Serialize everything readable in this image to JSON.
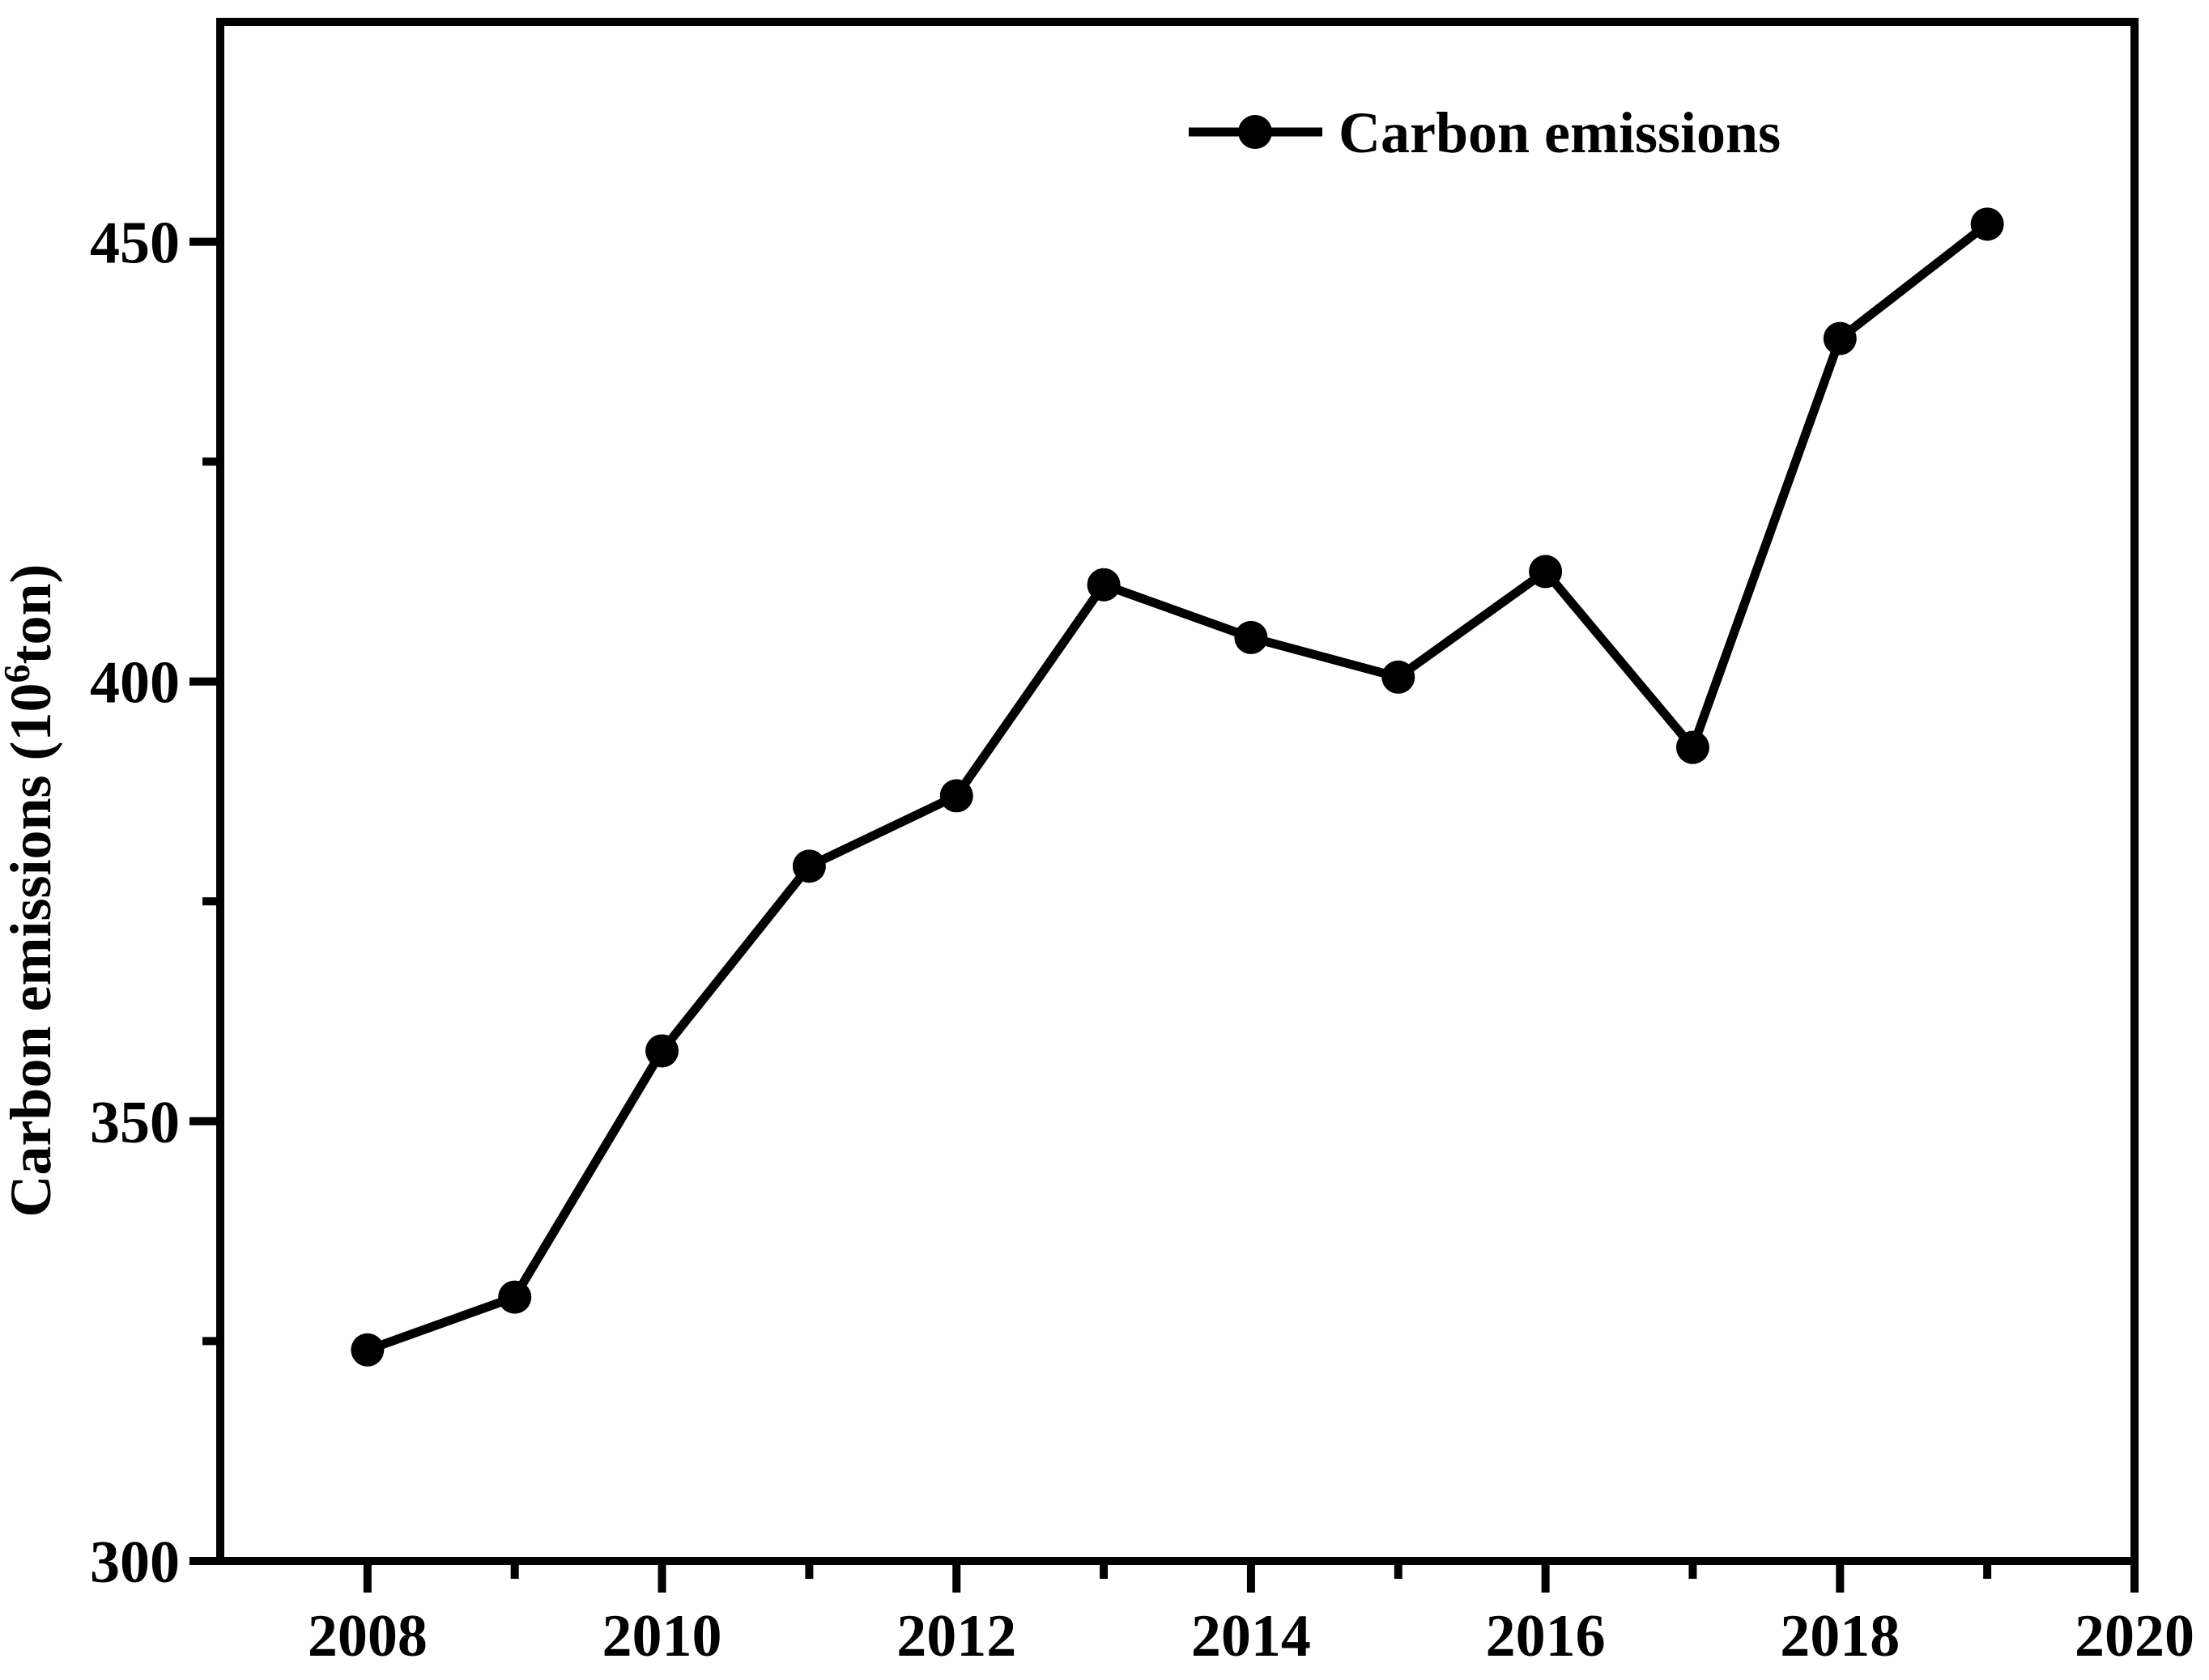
{
  "figure": {
    "background_color": "#ffffff",
    "ink_color": "#000000"
  },
  "legend": {
    "label": "Carbon emissions",
    "swatch": "line-with-circle-marker"
  },
  "y_axis": {
    "label_display": "Carbon emissions (10⁶ton)",
    "label_prefix": "Carbon emissions (10",
    "label_superscript": "6",
    "label_suffix": "ton)",
    "major_tick_labels": [
      "300",
      "350",
      "400",
      "450"
    ]
  },
  "x_axis": {
    "major_tick_labels": [
      "2008",
      "2010",
      "2012",
      "2014",
      "2016",
      "2018",
      "2020"
    ]
  },
  "chart_data": {
    "type": "line",
    "title": "",
    "xlabel": "",
    "ylabel": "Carbon emissions (10⁶ton)",
    "x": [
      2008,
      2009,
      2010,
      2011,
      2012,
      2013,
      2014,
      2015,
      2016,
      2017,
      2018,
      2019
    ],
    "series": [
      {
        "name": "Carbon emissions",
        "values": [
          324,
          330,
          358,
          379,
          387,
          411,
          405,
          400.5,
          412.5,
          392.5,
          439,
          452
        ]
      }
    ],
    "xlim": [
      2007,
      2020
    ],
    "ylim": [
      300,
      475
    ],
    "x_major_ticks": [
      2008,
      2010,
      2012,
      2014,
      2016,
      2018,
      2020
    ],
    "x_minor_ticks": [
      2009,
      2011,
      2013,
      2015,
      2017,
      2019
    ],
    "y_major_ticks": [
      300,
      350,
      400,
      450
    ],
    "y_minor_ticks": [
      325,
      375,
      425
    ],
    "grid": false,
    "legend_position": "top-center-right",
    "marker": "filled-circle",
    "line_color": "#000000",
    "marker_color": "#000000"
  }
}
